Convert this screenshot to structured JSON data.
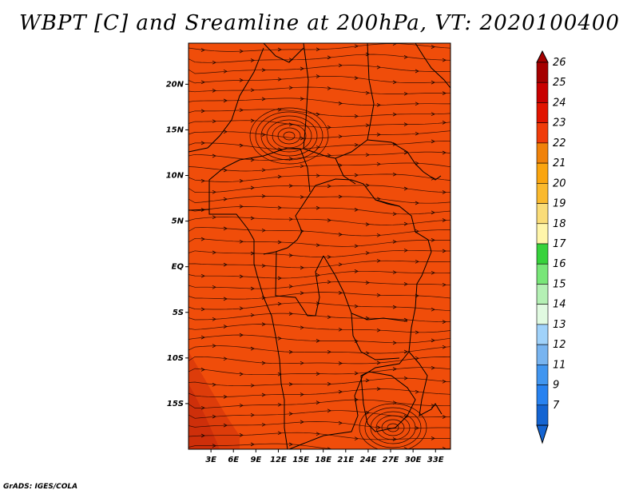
{
  "title": "WBPT [C] and Sreamline at 200hPa, VT: 2020100400",
  "credit": "GrADS: IGES/COLA",
  "map": {
    "fill_color": "#f04d0a",
    "lat_labels": [
      "20N",
      "15N",
      "10N",
      "5N",
      "EQ",
      "5S",
      "10S",
      "15S"
    ],
    "lat_values": [
      20,
      15,
      10,
      5,
      0,
      -5,
      -10,
      -15
    ],
    "lon_labels": [
      "3E",
      "6E",
      "9E",
      "12E",
      "15E",
      "18E",
      "21E",
      "24E",
      "27E",
      "30E",
      "33E"
    ],
    "lon_values": [
      3,
      6,
      9,
      12,
      15,
      18,
      21,
      24,
      27,
      30,
      33
    ],
    "lat_range": [
      -20,
      24.5
    ],
    "lon_range": [
      0,
      35
    ]
  },
  "colorbar": {
    "labels": [
      "26",
      "25",
      "24",
      "23",
      "22",
      "21",
      "20",
      "19",
      "18",
      "17",
      "16",
      "15",
      "14",
      "13",
      "12",
      "11",
      "9",
      "7"
    ],
    "colors": [
      "#a50000",
      "#c80000",
      "#e11400",
      "#f03c0a",
      "#f0820a",
      "#faa50f",
      "#fab92d",
      "#fadc78",
      "#fff5aa",
      "#37d23c",
      "#78e678",
      "#b4f0b4",
      "#e1fae1",
      "#a0d2fa",
      "#78b4f0",
      "#4196f0",
      "#2882f0",
      "#1464d2"
    ]
  }
}
